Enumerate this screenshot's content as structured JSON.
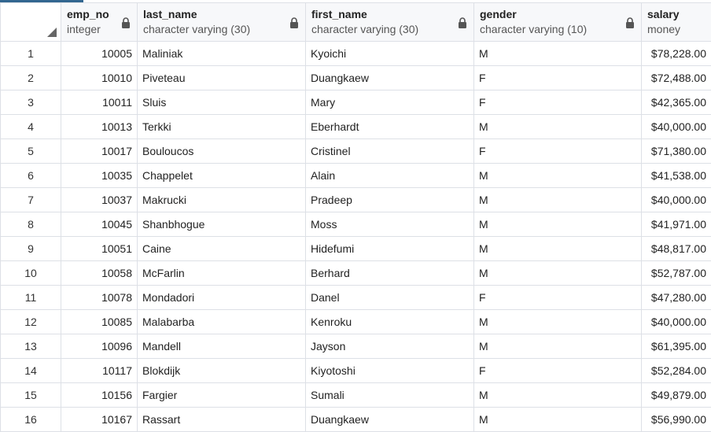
{
  "columns": [
    {
      "name": "emp_no",
      "type": "integer"
    },
    {
      "name": "last_name",
      "type": "character varying (30)"
    },
    {
      "name": "first_name",
      "type": "character varying (30)"
    },
    {
      "name": "gender",
      "type": "character varying (10)"
    },
    {
      "name": "salary",
      "type": "money"
    }
  ],
  "rows": [
    [
      "1",
      "10005",
      "Maliniak",
      "Kyoichi",
      "M",
      "$78,228.00"
    ],
    [
      "2",
      "10010",
      "Piveteau",
      "Duangkaew",
      "F",
      "$72,488.00"
    ],
    [
      "3",
      "10011",
      "Sluis",
      "Mary",
      "F",
      "$42,365.00"
    ],
    [
      "4",
      "10013",
      "Terkki",
      "Eberhardt",
      "M",
      "$40,000.00"
    ],
    [
      "5",
      "10017",
      "Bouloucos",
      "Cristinel",
      "F",
      "$71,380.00"
    ],
    [
      "6",
      "10035",
      "Chappelet",
      "Alain",
      "M",
      "$41,538.00"
    ],
    [
      "7",
      "10037",
      "Makrucki",
      "Pradeep",
      "M",
      "$40,000.00"
    ],
    [
      "8",
      "10045",
      "Shanbhogue",
      "Moss",
      "M",
      "$41,971.00"
    ],
    [
      "9",
      "10051",
      "Caine",
      "Hidefumi",
      "M",
      "$48,817.00"
    ],
    [
      "10",
      "10058",
      "McFarlin",
      "Berhard",
      "M",
      "$52,787.00"
    ],
    [
      "11",
      "10078",
      "Mondadori",
      "Danel",
      "F",
      "$47,280.00"
    ],
    [
      "12",
      "10085",
      "Malabarba",
      "Kenroku",
      "M",
      "$40,000.00"
    ],
    [
      "13",
      "10096",
      "Mandell",
      "Jayson",
      "M",
      "$61,395.00"
    ],
    [
      "14",
      "10117",
      "Blokdijk",
      "Kiyotoshi",
      "F",
      "$52,284.00"
    ],
    [
      "15",
      "10156",
      "Fargier",
      "Sumali",
      "M",
      "$49,879.00"
    ],
    [
      "16",
      "10167",
      "Rassart",
      "Duangkaew",
      "M",
      "$56,990.00"
    ]
  ],
  "icons": {
    "column_lock": "lock-icon",
    "select_all": "select-all-triangle-icon"
  },
  "colors": {
    "header_bg": "#f7f8fa",
    "grid_line": "#dde0e6",
    "active_tab": "#326690"
  }
}
